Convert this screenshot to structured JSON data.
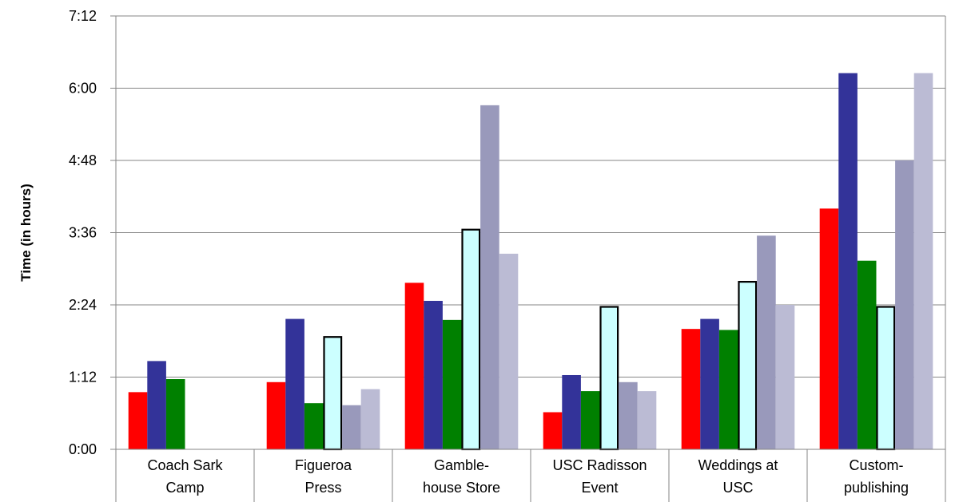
{
  "chart_data": {
    "type": "bar",
    "title": "",
    "xlabel": "",
    "ylabel": "Time (in hours)",
    "ylim": [
      "0:00",
      "7:12"
    ],
    "y_ticks": [
      "0:00",
      "1:12",
      "2:24",
      "3:36",
      "4:48",
      "6:00",
      "7:12"
    ],
    "grid": true,
    "legend": "none",
    "categories": [
      [
        "Coach Sark",
        "Camp"
      ],
      [
        "Figueroa",
        "Press"
      ],
      [
        "Gamble-",
        "house Store"
      ],
      [
        "USC Radisson",
        "Event"
      ],
      [
        "Weddings at",
        "USC"
      ],
      [
        "Custom-",
        "publishing"
      ]
    ],
    "series": [
      {
        "color": "#ff0000",
        "outlined": false,
        "values": [
          "0:57",
          "1:07",
          "2:46",
          "0:37",
          "2:00",
          "4:00"
        ]
      },
      {
        "color": "#333399",
        "outlined": false,
        "values": [
          "1:28",
          "2:10",
          "2:28",
          "1:14",
          "2:10",
          "6:15"
        ]
      },
      {
        "color": "#008000",
        "outlined": false,
        "values": [
          "1:10",
          "0:46",
          "2:09",
          "0:58",
          "1:59",
          "3:08"
        ]
      },
      {
        "color": "#ccffff",
        "outlined": true,
        "values": [
          null,
          "1:52",
          "3:39",
          "2:22",
          "2:47",
          "2:22"
        ]
      },
      {
        "color": "#9999bb",
        "outlined": false,
        "values": [
          null,
          "0:44",
          "5:43",
          "1:07",
          "3:33",
          "4:48"
        ]
      },
      {
        "color": "#bbbbd4",
        "outlined": false,
        "values": [
          null,
          "1:00",
          "3:15",
          "0:58",
          "2:24",
          "6:15"
        ]
      }
    ]
  }
}
